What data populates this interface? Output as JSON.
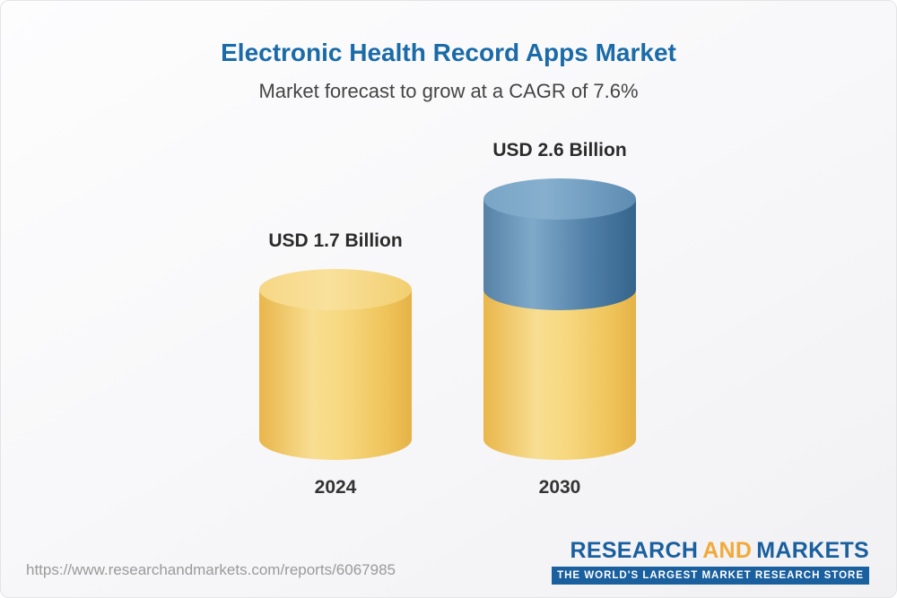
{
  "header": {
    "title": "Electronic Health Record Apps Market",
    "subtitle": "Market forecast to grow at a CAGR of 7.6%"
  },
  "chart_data": {
    "type": "bar",
    "title": "Electronic Health Record Apps Market",
    "subtitle": "Market forecast to grow at a CAGR of 7.6%",
    "unit": "USD Billion",
    "cagr_percent": 7.6,
    "categories": [
      "2024",
      "2030"
    ],
    "values": [
      1.7,
      2.6
    ],
    "bars": [
      {
        "category": "2024",
        "value": 1.7,
        "label": "USD 1.7 Billion",
        "segments": [
          {
            "color": "yellow",
            "value": 1.7
          }
        ]
      },
      {
        "category": "2030",
        "value": 2.6,
        "label": "USD 2.6 Billion",
        "segments": [
          {
            "color": "yellow",
            "value": 1.7
          },
          {
            "color": "blue",
            "value": 0.9
          }
        ]
      }
    ],
    "colors": {
      "yellow": "#F5CF6E",
      "blue": "#4F7EA6",
      "title_blue": "#1A6BA8"
    },
    "legend": "none",
    "grid": false
  },
  "footer": {
    "url": "https://www.researchandmarkets.com/reports/6067985",
    "logo": {
      "research": "RESEARCH",
      "and": "AND",
      "markets": "MARKETS",
      "tagline": "THE WORLD'S LARGEST MARKET RESEARCH STORE"
    }
  }
}
